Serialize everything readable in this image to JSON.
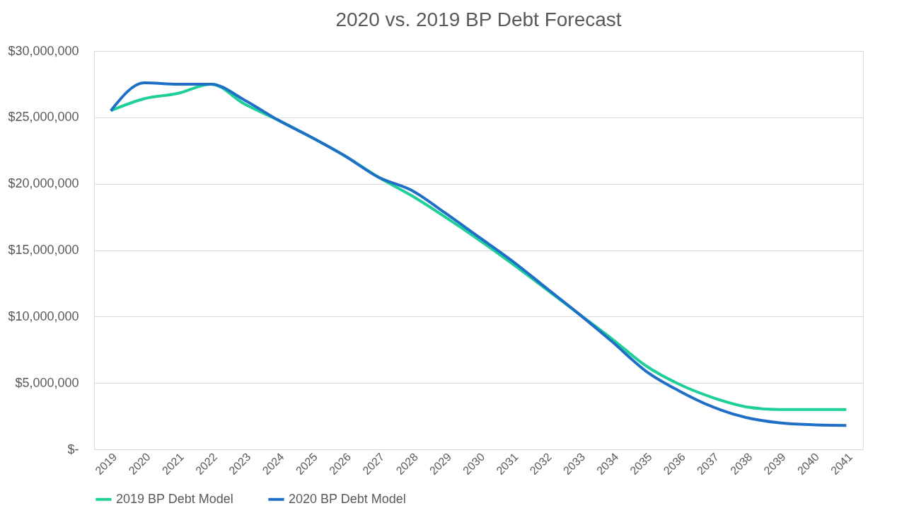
{
  "chart_data": {
    "type": "line",
    "title": "2020 vs. 2019 BP Debt Forecast",
    "categories": [
      "2019",
      "2020",
      "2021",
      "2022",
      "2023",
      "2024",
      "2025",
      "2026",
      "2027",
      "2028",
      "2029",
      "2030",
      "2031",
      "2032",
      "2033",
      "2034",
      "2035",
      "2036",
      "2037",
      "2038",
      "2039",
      "2040",
      "2041"
    ],
    "series": [
      {
        "name": "2019 BP Debt Model",
        "color": "#1fcf9a",
        "values": [
          25500000,
          26400000,
          26800000,
          27500000,
          26000000,
          24800000,
          23500000,
          22100000,
          20500000,
          19100000,
          17500000,
          15800000,
          14000000,
          12100000,
          10200000,
          8300000,
          6300000,
          4900000,
          3900000,
          3200000,
          3000000,
          3000000,
          3000000
        ]
      },
      {
        "name": "2020 BP Debt Model",
        "color": "#1f6fc7",
        "values": [
          25500000,
          27600000,
          27500000,
          27500000,
          26300000,
          24800000,
          23500000,
          22100000,
          20500000,
          19500000,
          17800000,
          16000000,
          14200000,
          12200000,
          10200000,
          8100000,
          5900000,
          4400000,
          3200000,
          2400000,
          2000000,
          1850000,
          1800000
        ]
      }
    ],
    "ylim": [
      0,
      30000000
    ],
    "yticks": [
      {
        "value": 0,
        "label": "$-"
      },
      {
        "value": 5000000,
        "label": "$5,000,000"
      },
      {
        "value": 10000000,
        "label": "$10,000,000"
      },
      {
        "value": 15000000,
        "label": "$15,000,000"
      },
      {
        "value": 20000000,
        "label": "$20,000,000"
      },
      {
        "value": 25000000,
        "label": "$25,000,000"
      },
      {
        "value": 30000000,
        "label": "$30,000,000"
      }
    ],
    "grid": "y",
    "legend": "bottom"
  }
}
